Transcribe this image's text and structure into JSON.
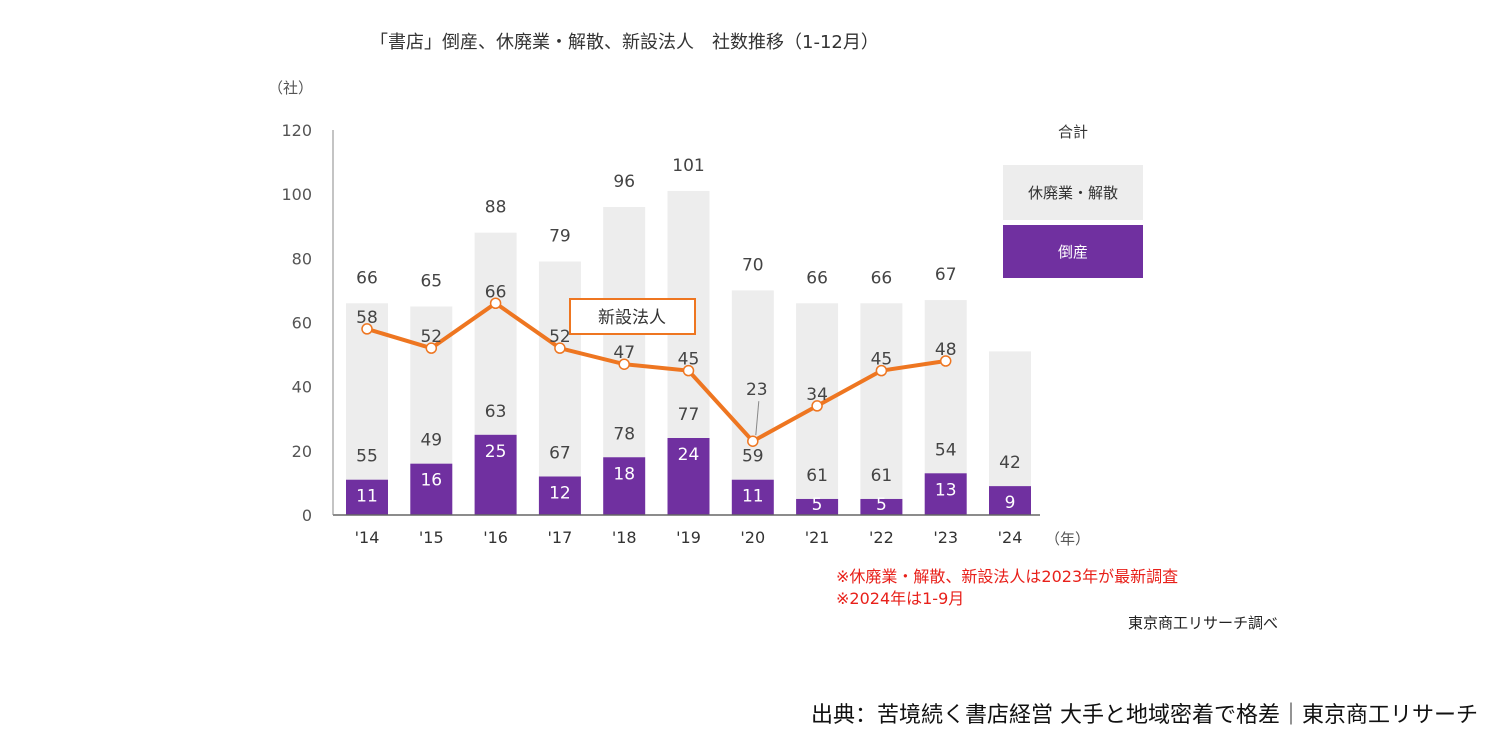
{
  "chart_data": {
    "type": "bar",
    "title": "「書店」倒産、休廃業・解散、新設法人　社数推移（1-12月）",
    "ylabel": "（社）",
    "xlabel": "（年）",
    "ylim": [
      0,
      120
    ],
    "yticks": [
      0,
      20,
      40,
      60,
      80,
      100,
      120
    ],
    "categories": [
      "'14",
      "'15",
      "'16",
      "'17",
      "'18",
      "'19",
      "'20",
      "'21",
      "'22",
      "'23",
      "'24"
    ],
    "series": [
      {
        "name": "倒産",
        "type": "bar",
        "color": "#7030a0",
        "values": [
          11,
          16,
          25,
          12,
          18,
          24,
          11,
          5,
          5,
          13,
          9
        ]
      },
      {
        "name": "休廃業・解散",
        "type": "bar",
        "color": "#ededed",
        "values": [
          55,
          49,
          63,
          67,
          78,
          77,
          59,
          61,
          61,
          54,
          42
        ]
      },
      {
        "name": "新設法人",
        "type": "line",
        "color": "#ee7621",
        "values": [
          58,
          52,
          66,
          52,
          47,
          45,
          23,
          34,
          45,
          48,
          null
        ]
      }
    ],
    "totals": [
      66,
      65,
      88,
      79,
      96,
      101,
      70,
      66,
      66,
      67,
      null
    ],
    "legend": {
      "title": "合計",
      "items": [
        "休廃業・解散",
        "倒産"
      ],
      "placement": "right"
    },
    "line_label": "新設法人",
    "notes": [
      "※休廃業・解散、新設法人は2023年が最新調査",
      "※2024年は1-9月"
    ],
    "credit": "東京商工リサーチ調べ"
  },
  "source": "出典：苦境続く書店経営 大手と地域密着で格差｜東京商工リサーチ"
}
